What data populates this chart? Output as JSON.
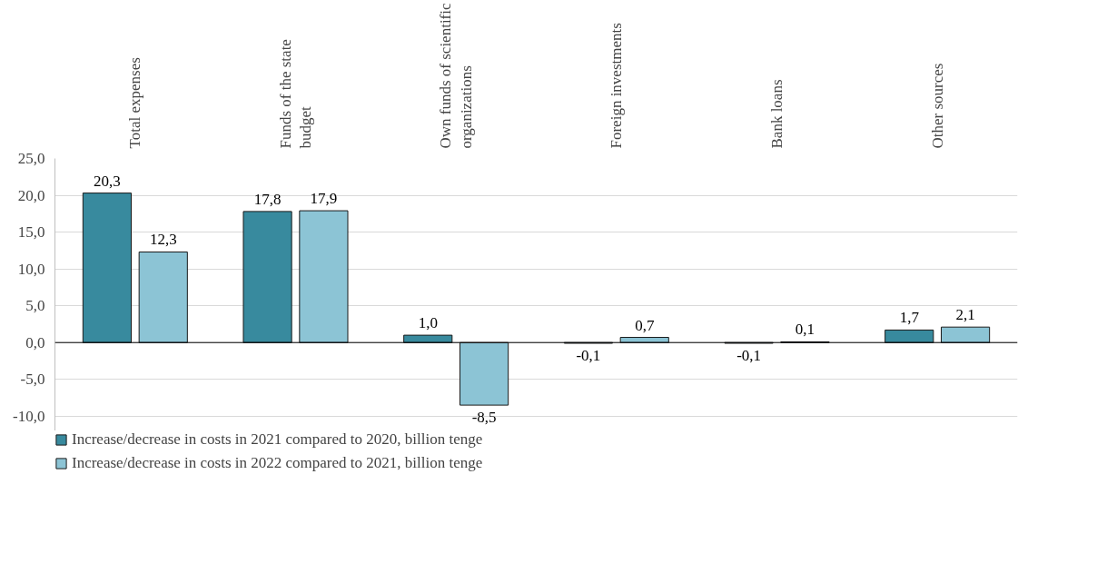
{
  "chart_data": {
    "type": "bar",
    "categories": [
      "Total expenses",
      "Funds of the state budget",
      "Own funds of scientific organizations",
      "Foreign investments",
      "Bank loans",
      "Other sources"
    ],
    "series": [
      {
        "name": "Increase/decrease in costs in 2021 compared to 2020, billion tenge",
        "color": "#388a9e",
        "values": [
          20.3,
          17.8,
          1.0,
          -0.1,
          -0.1,
          1.7
        ],
        "value_labels": [
          "20,3",
          "17,8",
          "1,0",
          "-0,1",
          "-0,1",
          "1,7"
        ]
      },
      {
        "name": "Increase/decrease in costs in 2022 compared to 2021, billion tenge",
        "color": "#8cc4d5",
        "values": [
          12.3,
          17.9,
          -8.5,
          0.7,
          0.1,
          2.1
        ],
        "value_labels": [
          "12,3",
          "17,9",
          "-8,5",
          "0,7",
          "0,1",
          "2,1"
        ]
      }
    ],
    "ylim": [
      -12,
      25
    ],
    "yticks": [
      {
        "value": -10,
        "label": "-10,0"
      },
      {
        "value": -5,
        "label": "-5,0"
      },
      {
        "value": 0,
        "label": "0,0"
      },
      {
        "value": 5,
        "label": "5,0"
      },
      {
        "value": 10,
        "label": "10,0"
      },
      {
        "value": 15,
        "label": "15,0"
      },
      {
        "value": 20,
        "label": "20,0"
      },
      {
        "value": 25,
        "label": "25,0"
      }
    ],
    "grid": "y",
    "legend": "bottom"
  }
}
